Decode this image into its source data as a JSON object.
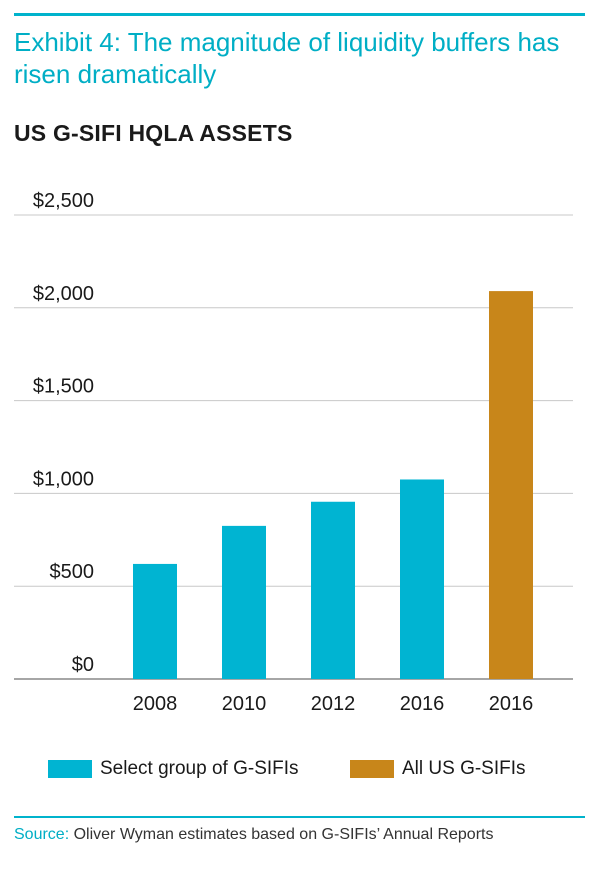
{
  "header": {
    "exhibit_title": "Exhibit 4: The magnitude of liquidity buffers has risen dramatically",
    "chart_heading": "US G-SIFI HQLA ASSETS"
  },
  "colors": {
    "accent": "#00b3cc",
    "series_select": "#00b4d2",
    "series_all": "#c8861a",
    "gridline": "#c8c8c8",
    "axis": "#888888"
  },
  "chart_data": {
    "type": "bar",
    "categories": [
      "2008",
      "2010",
      "2012",
      "2016",
      "2016"
    ],
    "series": [
      {
        "name": "Select group of G-SIFIs",
        "values": [
          620,
          825,
          955,
          1075,
          null
        ]
      },
      {
        "name": "All US G-SIFIs",
        "values": [
          null,
          null,
          null,
          null,
          2090
        ]
      }
    ],
    "y_tick_values": [
      0,
      500,
      1000,
      1500,
      2000,
      2500
    ],
    "y_tick_labels": [
      "$0",
      "$500",
      "$1,000",
      "$1,500",
      "$2,000",
      "$2,500"
    ],
    "ylim": [
      0,
      2500
    ],
    "grid": true,
    "legend_position": "bottom",
    "xlabel": "",
    "ylabel": ""
  },
  "legend": [
    {
      "label": "Select group of G-SIFIs"
    },
    {
      "label": "All US G-SIFIs"
    }
  ],
  "source": {
    "prefix": "Source:",
    "text": " Oliver Wyman estimates based on G-SIFIs’ Annual Reports"
  }
}
